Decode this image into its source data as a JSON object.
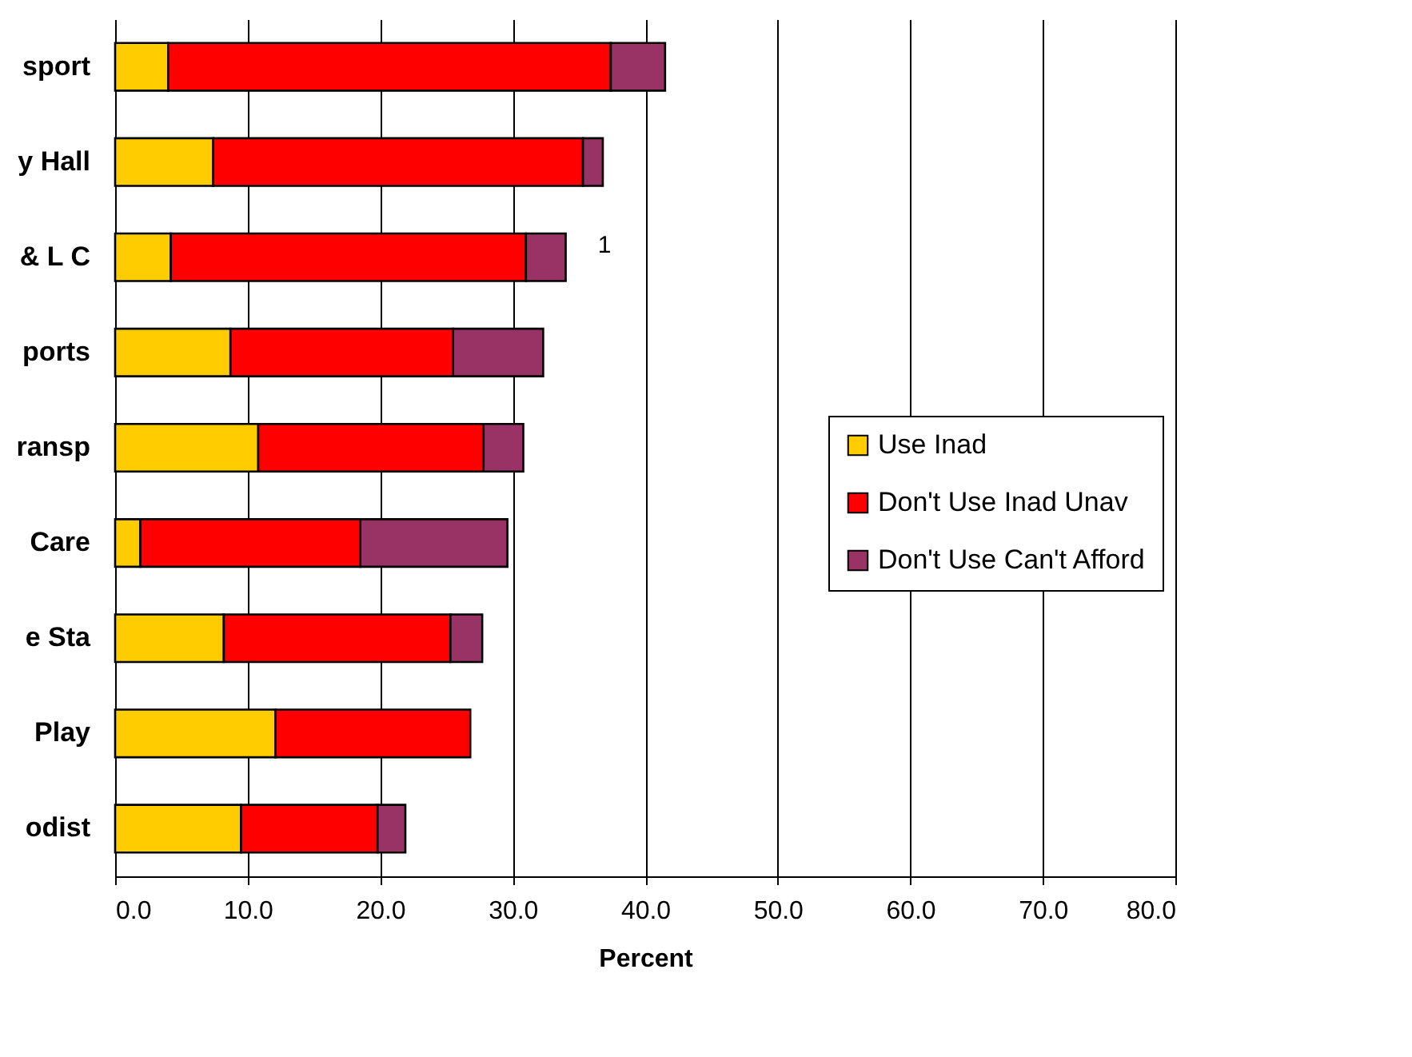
{
  "chart_data": {
    "type": "bar",
    "orientation": "horizontal",
    "stacked": true,
    "categories": [
      "sport",
      "y Hall",
      "& L C",
      "ports",
      "ransp",
      "Care",
      "e Sta",
      "Play",
      "odist"
    ],
    "series": [
      {
        "name": "Use Inad",
        "color": "#ffcc00",
        "values": [
          4.0,
          7.4,
          4.2,
          8.7,
          10.8,
          1.9,
          8.2,
          12.1,
          9.5
        ]
      },
      {
        "name": "Don't Use Inad Unav",
        "color": "#ff0000",
        "values": [
          33.4,
          27.9,
          26.8,
          16.8,
          17.0,
          16.6,
          17.1,
          14.7,
          10.3
        ]
      },
      {
        "name": "Don't Use Can't Afford",
        "color": "#993366",
        "values": [
          4.1,
          1.5,
          3.0,
          6.8,
          3.0,
          11.1,
          2.4,
          null,
          2.1
        ]
      }
    ],
    "xlabel": "Percent",
    "xlim": [
      0,
      80
    ],
    "xticks": [
      {
        "value": 0,
        "label": "0.0"
      },
      {
        "value": 10,
        "label": "10.0"
      },
      {
        "value": 20,
        "label": "20.0"
      },
      {
        "value": 30,
        "label": "30.0"
      },
      {
        "value": 40,
        "label": "40.0"
      },
      {
        "value": 50,
        "label": "50.0"
      },
      {
        "value": 60,
        "label": "60.0"
      },
      {
        "value": 70,
        "label": "70.0"
      },
      {
        "value": 80,
        "label": "80.0"
      }
    ],
    "grid": "x",
    "legend": "right",
    "annotations": [
      "1"
    ]
  }
}
